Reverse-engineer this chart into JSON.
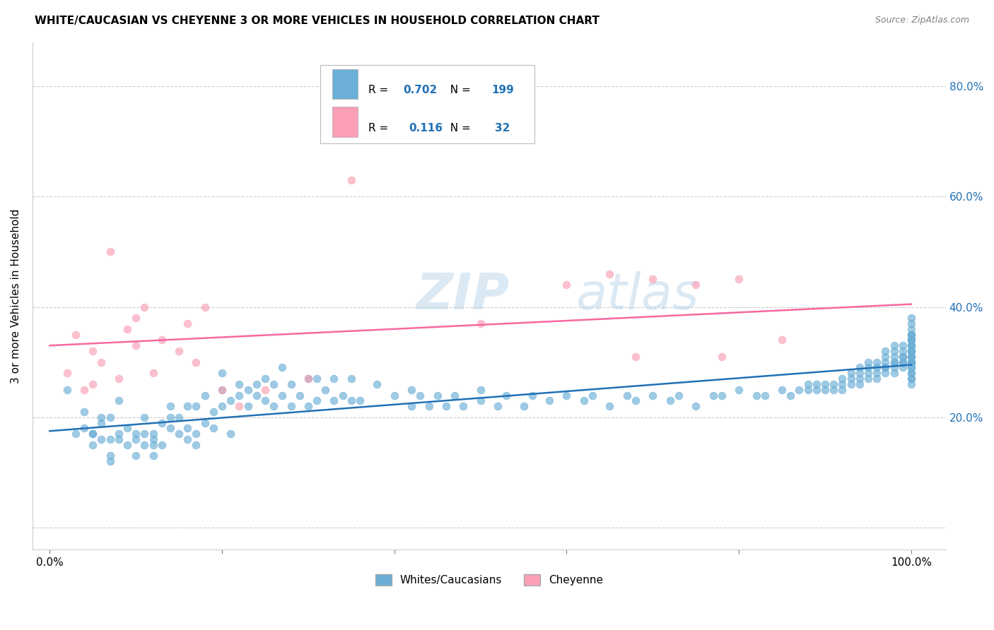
{
  "title": "WHITE/CAUCASIAN VS CHEYENNE 3 OR MORE VEHICLES IN HOUSEHOLD CORRELATION CHART",
  "source": "Source: ZipAtlas.com",
  "ylabel": "3 or more Vehicles in Household",
  "yticks": [
    0.0,
    0.2,
    0.4,
    0.6,
    0.8
  ],
  "ytick_labels": [
    "",
    "20.0%",
    "40.0%",
    "60.0%",
    "80.0%"
  ],
  "xtick_labels": [
    "0.0%",
    "",
    "",
    "",
    "",
    "100.0%"
  ],
  "legend_blue_label": "Whites/Caucasians",
  "legend_pink_label": "Cheyenne",
  "blue_R": "0.702",
  "blue_N": "199",
  "pink_R": "0.116",
  "pink_N": "32",
  "blue_color": "#6baed6",
  "pink_color": "#fa9fb5",
  "blue_line_color": "#2171b5",
  "pink_line_color": "#f768a1",
  "watermark_zip": "ZIP",
  "watermark_atlas": "atlas",
  "blue_scatter_x": [
    0.02,
    0.03,
    0.04,
    0.04,
    0.05,
    0.05,
    0.05,
    0.06,
    0.06,
    0.06,
    0.07,
    0.07,
    0.07,
    0.07,
    0.08,
    0.08,
    0.08,
    0.09,
    0.09,
    0.1,
    0.1,
    0.1,
    0.11,
    0.11,
    0.11,
    0.12,
    0.12,
    0.12,
    0.12,
    0.13,
    0.13,
    0.14,
    0.14,
    0.14,
    0.15,
    0.15,
    0.16,
    0.16,
    0.16,
    0.17,
    0.17,
    0.17,
    0.18,
    0.18,
    0.19,
    0.19,
    0.2,
    0.2,
    0.2,
    0.21,
    0.21,
    0.22,
    0.22,
    0.23,
    0.23,
    0.24,
    0.24,
    0.25,
    0.25,
    0.26,
    0.26,
    0.27,
    0.27,
    0.28,
    0.28,
    0.29,
    0.3,
    0.3,
    0.31,
    0.31,
    0.32,
    0.33,
    0.33,
    0.34,
    0.35,
    0.35,
    0.36,
    0.38,
    0.4,
    0.42,
    0.42,
    0.43,
    0.44,
    0.45,
    0.46,
    0.47,
    0.48,
    0.5,
    0.5,
    0.52,
    0.53,
    0.55,
    0.56,
    0.58,
    0.6,
    0.62,
    0.63,
    0.65,
    0.67,
    0.68,
    0.7,
    0.72,
    0.73,
    0.75,
    0.77,
    0.78,
    0.8,
    0.82,
    0.83,
    0.85,
    0.86,
    0.87,
    0.88,
    0.88,
    0.89,
    0.89,
    0.9,
    0.9,
    0.91,
    0.91,
    0.92,
    0.92,
    0.92,
    0.93,
    0.93,
    0.93,
    0.94,
    0.94,
    0.94,
    0.94,
    0.95,
    0.95,
    0.95,
    0.95,
    0.96,
    0.96,
    0.96,
    0.96,
    0.97,
    0.97,
    0.97,
    0.97,
    0.97,
    0.97,
    0.98,
    0.98,
    0.98,
    0.98,
    0.98,
    0.98,
    0.98,
    0.99,
    0.99,
    0.99,
    0.99,
    0.99,
    0.99,
    0.99,
    1.0,
    1.0,
    1.0,
    1.0,
    1.0,
    1.0,
    1.0,
    1.0,
    1.0,
    1.0,
    1.0,
    1.0,
    1.0,
    1.0,
    1.0,
    1.0,
    1.0,
    1.0,
    1.0,
    1.0,
    1.0,
    1.0,
    1.0,
    1.0,
    1.0,
    1.0,
    1.0,
    1.0,
    1.0,
    1.0,
    1.0
  ],
  "blue_scatter_y": [
    0.25,
    0.17,
    0.18,
    0.21,
    0.15,
    0.17,
    0.17,
    0.16,
    0.19,
    0.2,
    0.12,
    0.13,
    0.16,
    0.2,
    0.16,
    0.17,
    0.23,
    0.15,
    0.18,
    0.13,
    0.16,
    0.17,
    0.15,
    0.17,
    0.2,
    0.13,
    0.15,
    0.16,
    0.17,
    0.15,
    0.19,
    0.18,
    0.2,
    0.22,
    0.17,
    0.2,
    0.16,
    0.18,
    0.22,
    0.15,
    0.17,
    0.22,
    0.19,
    0.24,
    0.18,
    0.21,
    0.22,
    0.25,
    0.28,
    0.17,
    0.23,
    0.24,
    0.26,
    0.22,
    0.25,
    0.24,
    0.26,
    0.23,
    0.27,
    0.22,
    0.26,
    0.24,
    0.29,
    0.22,
    0.26,
    0.24,
    0.22,
    0.27,
    0.23,
    0.27,
    0.25,
    0.23,
    0.27,
    0.24,
    0.23,
    0.27,
    0.23,
    0.26,
    0.24,
    0.22,
    0.25,
    0.24,
    0.22,
    0.24,
    0.22,
    0.24,
    0.22,
    0.23,
    0.25,
    0.22,
    0.24,
    0.22,
    0.24,
    0.23,
    0.24,
    0.23,
    0.24,
    0.22,
    0.24,
    0.23,
    0.24,
    0.23,
    0.24,
    0.22,
    0.24,
    0.24,
    0.25,
    0.24,
    0.24,
    0.25,
    0.24,
    0.25,
    0.25,
    0.26,
    0.25,
    0.26,
    0.25,
    0.26,
    0.25,
    0.26,
    0.25,
    0.26,
    0.27,
    0.26,
    0.27,
    0.28,
    0.26,
    0.27,
    0.28,
    0.29,
    0.27,
    0.28,
    0.29,
    0.3,
    0.27,
    0.28,
    0.29,
    0.3,
    0.28,
    0.29,
    0.29,
    0.3,
    0.31,
    0.32,
    0.28,
    0.29,
    0.3,
    0.3,
    0.31,
    0.32,
    0.33,
    0.29,
    0.3,
    0.3,
    0.31,
    0.31,
    0.32,
    0.33,
    0.29,
    0.3,
    0.3,
    0.31,
    0.31,
    0.32,
    0.32,
    0.33,
    0.34,
    0.35,
    0.26,
    0.27,
    0.28,
    0.3,
    0.31,
    0.32,
    0.33,
    0.34,
    0.35,
    0.36,
    0.37,
    0.38,
    0.27,
    0.28,
    0.29,
    0.3,
    0.31,
    0.32,
    0.33,
    0.34,
    0.35
  ],
  "pink_scatter_x": [
    0.02,
    0.03,
    0.04,
    0.05,
    0.05,
    0.06,
    0.07,
    0.08,
    0.09,
    0.1,
    0.1,
    0.11,
    0.12,
    0.13,
    0.15,
    0.16,
    0.17,
    0.18,
    0.2,
    0.22,
    0.25,
    0.3,
    0.35,
    0.5,
    0.6,
    0.65,
    0.68,
    0.7,
    0.75,
    0.78,
    0.8,
    0.85
  ],
  "pink_scatter_y": [
    0.28,
    0.35,
    0.25,
    0.26,
    0.32,
    0.3,
    0.5,
    0.27,
    0.36,
    0.33,
    0.38,
    0.4,
    0.28,
    0.34,
    0.32,
    0.37,
    0.3,
    0.4,
    0.25,
    0.22,
    0.25,
    0.27,
    0.63,
    0.37,
    0.44,
    0.46,
    0.31,
    0.45,
    0.44,
    0.31,
    0.45,
    0.34
  ],
  "blue_line_x": [
    0.0,
    1.0
  ],
  "blue_line_y": [
    0.175,
    0.295
  ],
  "pink_line_x": [
    0.0,
    1.0
  ],
  "pink_line_y": [
    0.33,
    0.405
  ],
  "xlim": [
    -0.02,
    1.04
  ],
  "ylim": [
    -0.04,
    0.88
  ]
}
